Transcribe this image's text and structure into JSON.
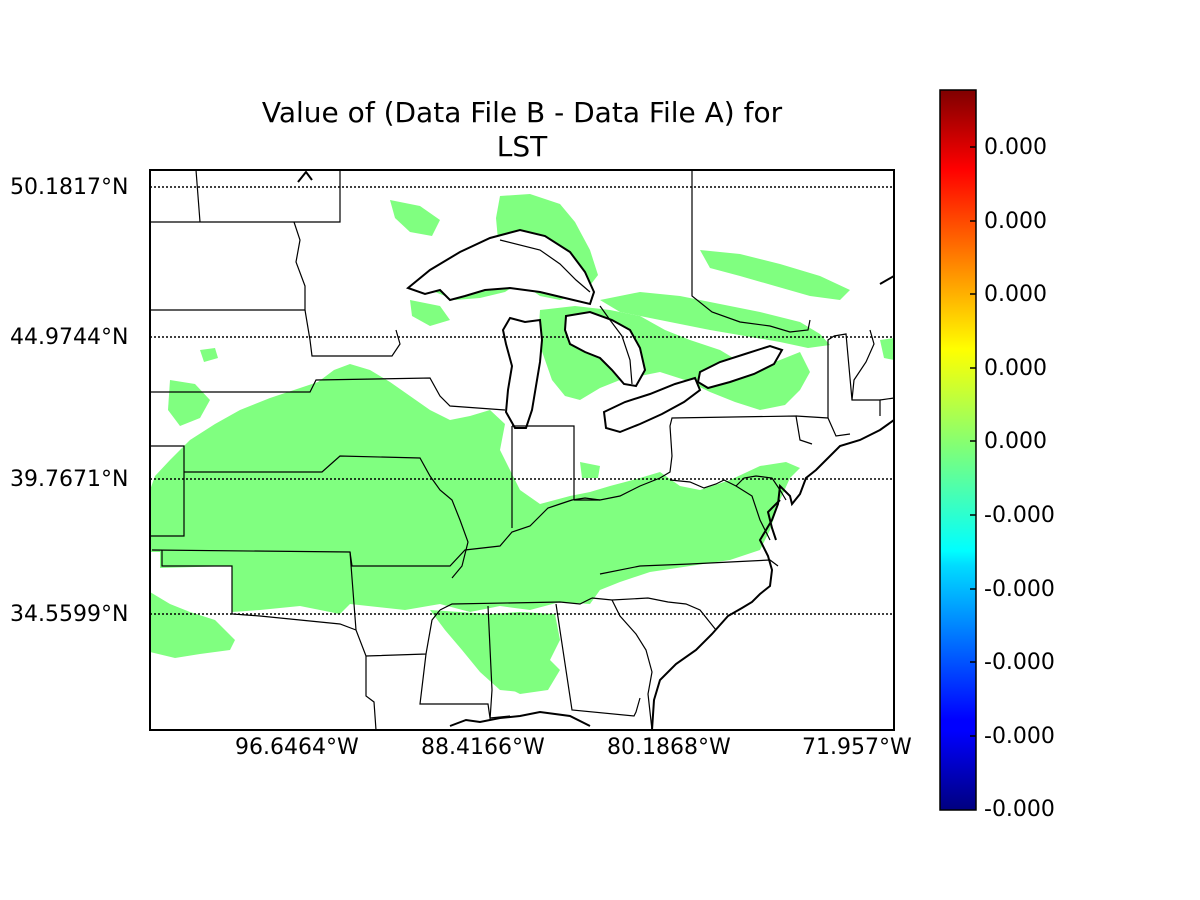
{
  "title": {
    "line1": "Value of (Data File B - Data File A) for",
    "line2": "LST"
  },
  "map": {
    "lat_labels": [
      "50.1817°N",
      "44.9744°N",
      "39.7671°N",
      "34.5599°N"
    ],
    "lon_labels": [
      "96.6464°W",
      "88.4166°W",
      "80.1868°W",
      "71.957°W"
    ],
    "field_color": "#80ff80",
    "border_color": "#000000"
  },
  "colorbar": {
    "colormap": "jet",
    "tick_labels": [
      "0.000",
      "0.000",
      "0.000",
      "0.000",
      "0.000",
      "-0.000",
      "-0.000",
      "-0.000",
      "-0.000",
      "-0.000"
    ]
  }
}
